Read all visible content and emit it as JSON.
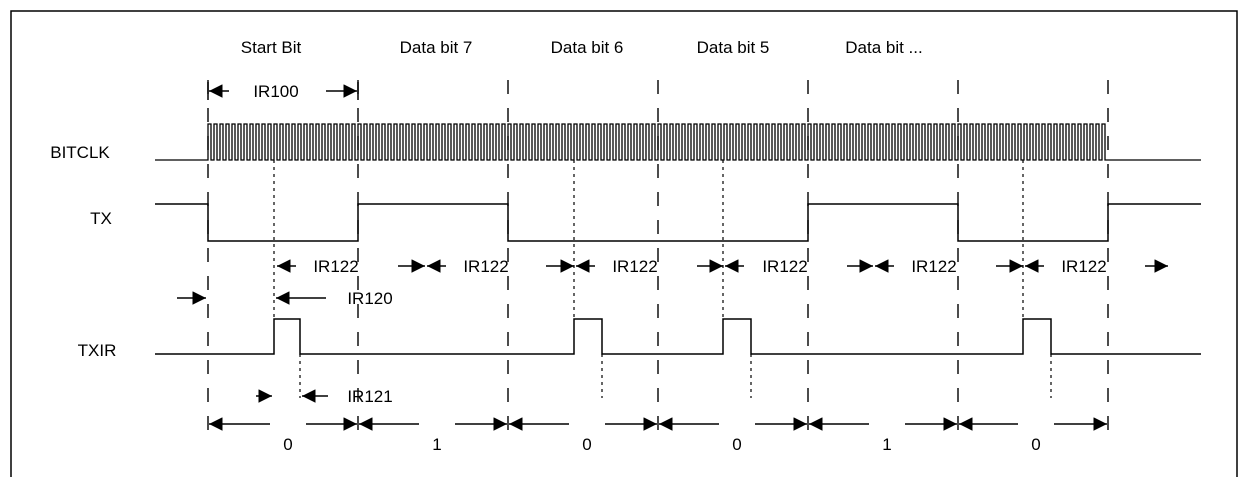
{
  "header_labels": [
    "Start Bit",
    "Data bit 7",
    "Data bit 6",
    "Data bit 5",
    "Data bit ..."
  ],
  "signals": {
    "bitclk": "BITCLK",
    "tx": "TX",
    "txir": "TXIR"
  },
  "timing": {
    "ir100": "IR100",
    "ir122": "IR122",
    "ir120": "IR120",
    "ir121": "IR121"
  },
  "bit_values": [
    "0",
    "1",
    "0",
    "0",
    "1",
    "0"
  ]
}
